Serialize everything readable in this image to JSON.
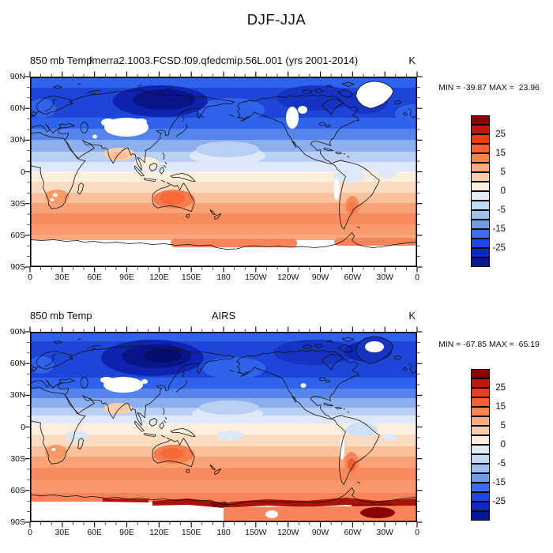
{
  "title": "DJF-JJA",
  "panels": [
    {
      "id": "model",
      "left_title": "850 mb Temp",
      "center_title": "fmerra2.1003.FCSD.f09.qfedcmip.56L.001 (yrs 2001-2014)",
      "units": "K",
      "stats": "MIN = -39.87 MAX =  23.96"
    },
    {
      "id": "airs",
      "left_title": "850 mb Temp",
      "center_title": "AIRS",
      "units": "K",
      "stats": "MIN = -67.85 MAX =  65.19"
    }
  ],
  "axes": {
    "lat_labels": [
      "90N",
      "60N",
      "30N",
      "0",
      "30S",
      "60S",
      "90S"
    ],
    "lon_labels": [
      "0",
      "30E",
      "60E",
      "90E",
      "120E",
      "150E",
      "180",
      "150W",
      "120W",
      "90W",
      "60W",
      "30W",
      "0"
    ]
  },
  "colorbar": {
    "labels": [
      "25",
      "15",
      "5",
      "0",
      "-5",
      "-15",
      "-25"
    ],
    "palette_top_to_bottom": [
      "#8b0000",
      "#c11708",
      "#ee3d17",
      "#fc5d2e",
      "#fc8353",
      "#fcab81",
      "#fccdab",
      "#fdeedc",
      "#dfecf9",
      "#c1d9f2",
      "#9cc1ec",
      "#6f9be2",
      "#3c6ff0",
      "#1c47e8",
      "#0c28c8",
      "#05188f"
    ]
  },
  "chart_data": {
    "type": "heatmap",
    "title": "DJF-JJA",
    "variable": "850 mb Temperature, seasonal difference (DJF minus JJA)",
    "units": "K",
    "projection": "cylindrical equidistant",
    "lon_range": [
      0,
      360
    ],
    "lat_range": [
      -90,
      90
    ],
    "x_tick_labels": [
      "0",
      "30E",
      "60E",
      "90E",
      "120E",
      "150E",
      "180",
      "150W",
      "120W",
      "90W",
      "60W",
      "30W",
      "0"
    ],
    "y_tick_labels": [
      "90N",
      "60N",
      "30N",
      "0",
      "30S",
      "60S",
      "90S"
    ],
    "contour_levels": [
      -30,
      -25,
      -20,
      -15,
      -10,
      -5,
      -2.5,
      0,
      2.5,
      5,
      10,
      15,
      20,
      25,
      30
    ],
    "colorbar_tick_values": [
      25,
      15,
      5,
      0,
      -5,
      -15,
      -25
    ],
    "series": [
      {
        "name": "fmerra2.1003.FCSD.f09.qfedcmip.56L.001 (yrs 2001-2014)",
        "min": -39.87,
        "max": 23.96,
        "pattern": "NH negative (blue; minima over Siberia and northern Canada, white masked areas over Tibet, Greenland, Rockies, Andes), SH positive (orange; maxima over Australia, southern Africa, Argentina), Antarctica masked white with orange coastal rim"
      },
      {
        "name": "AIRS",
        "min": -67.85,
        "max": 65.19,
        "pattern": "Similar zonal structure with deeper blues in NH, white patch over central Greenland and Tibet, and strong dark-red positives ringing the Antarctic coast with masked white interior"
      }
    ]
  }
}
